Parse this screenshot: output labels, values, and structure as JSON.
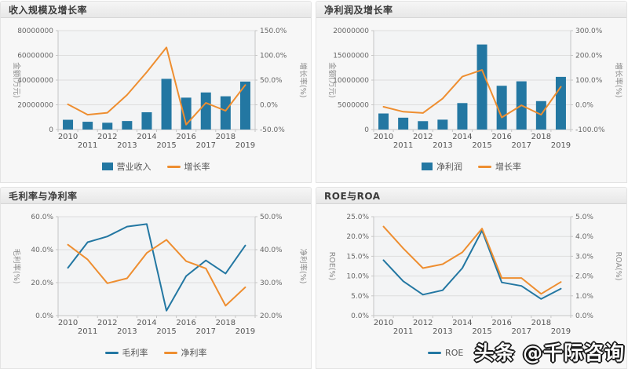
{
  "watermark": {
    "text": "头条 @千际咨询"
  },
  "colors": {
    "bar_blue": "#2377a2",
    "line_blue": "#2377a2",
    "line_orange": "#ee8e30",
    "grid": "#dddddd",
    "axis": "#c6c6c6",
    "plot_bg": "#f3f4f5"
  },
  "chart_data": [
    {
      "type": "bar",
      "title": "收入规模及增长率",
      "categories": [
        "2010",
        "2011",
        "2012",
        "2013",
        "2014",
        "2015",
        "2016",
        "2017",
        "2018",
        "2019"
      ],
      "left_axis": {
        "name": "金额(万元)",
        "min": 0,
        "max": 80000000,
        "tick_labels": [
          "80000000",
          "60000000",
          "40000000",
          "20000000",
          "0"
        ]
      },
      "right_axis": {
        "name": "增长率(%)",
        "min": -50,
        "max": 150,
        "tick_labels": [
          "150.0%",
          "100.0%",
          "50.0%",
          "0.0%",
          "-50.0%"
        ]
      },
      "series": [
        {
          "name": "营业收入",
          "type": "bar",
          "axis": "left",
          "color": "#2377a2",
          "values": [
            7900000,
            6300000,
            5500000,
            6900000,
            14000000,
            41000000,
            25800000,
            30000000,
            26900000,
            38800000
          ]
        },
        {
          "name": "增长率",
          "type": "line",
          "axis": "right",
          "color": "#ee8e30",
          "values": [
            1,
            -20,
            -16,
            20,
            66,
            116,
            -40,
            4,
            -12,
            40
          ]
        }
      ]
    },
    {
      "type": "bar",
      "title": "净利润及增长率",
      "categories": [
        "2010",
        "2011",
        "2012",
        "2013",
        "2014",
        "2015",
        "2016",
        "2017",
        "2018",
        "2019"
      ],
      "left_axis": {
        "name": "金额(万元)",
        "min": 0,
        "max": 20000000,
        "tick_labels": [
          "20000000",
          "15000000",
          "10000000",
          "5000000",
          "0"
        ]
      },
      "right_axis": {
        "name": "增长率(%)",
        "min": -100,
        "max": 300,
        "tick_labels": [
          "300.0%",
          "200.0%",
          "100.0%",
          "0.0%",
          "-100.0%"
        ]
      },
      "series": [
        {
          "name": "净利润",
          "type": "bar",
          "axis": "left",
          "color": "#2377a2",
          "values": [
            3250000,
            2400000,
            1700000,
            2000000,
            5350000,
            17200000,
            8850000,
            9750000,
            5750000,
            10650000
          ]
        },
        {
          "name": "增长率",
          "type": "line",
          "axis": "right",
          "color": "#ee8e30",
          "values": [
            -8,
            -28,
            -33,
            25,
            114,
            141,
            -51,
            -2,
            -40,
            73
          ]
        }
      ]
    },
    {
      "type": "line",
      "title": "毛利率与净利率",
      "categories": [
        "2010",
        "2011",
        "2012",
        "2013",
        "2014",
        "2015",
        "2016",
        "2017",
        "2018",
        "2019"
      ],
      "left_axis": {
        "name": "毛利率(%)",
        "min": 0,
        "max": 60,
        "tick_labels": [
          "60.0%",
          "40.0%",
          "20.0%",
          "0.0%"
        ]
      },
      "right_axis": {
        "name": "净利率(%)",
        "min": 20,
        "max": 50,
        "tick_labels": [
          "50.0%",
          "40.0%",
          "30.0%",
          "20.0%"
        ]
      },
      "series": [
        {
          "name": "毛利率",
          "type": "line",
          "axis": "left",
          "color": "#2377a2",
          "values": [
            29,
            44.5,
            48,
            54,
            55.5,
            3,
            24,
            33.5,
            25.5,
            42.5
          ]
        },
        {
          "name": "净利率",
          "type": "line",
          "axis": "right",
          "color": "#ee8e30",
          "values": [
            41.5,
            37,
            29.8,
            31.3,
            39,
            43,
            36.5,
            34.3,
            23,
            28.6
          ]
        }
      ]
    },
    {
      "type": "line",
      "title": "ROE与ROA",
      "categories": [
        "2010",
        "2011",
        "2012",
        "2013",
        "2014",
        "2015",
        "2016",
        "2017",
        "2018",
        "2019"
      ],
      "left_axis": {
        "name": "ROE(%)",
        "min": 0,
        "max": 25,
        "tick_labels": [
          "25.0%",
          "20.0%",
          "15.0%",
          "10.0%",
          "5.0%",
          "0.0%"
        ]
      },
      "right_axis": {
        "name": "ROA(%)",
        "min": 0,
        "max": 5,
        "tick_labels": [
          "5.0%",
          "4.0%",
          "3.0%",
          "2.0%",
          "1.0%",
          "0.0%"
        ]
      },
      "series": [
        {
          "name": "ROE",
          "type": "line",
          "axis": "left",
          "color": "#2377a2",
          "values": [
            14,
            8.7,
            5.3,
            6.4,
            12,
            21.5,
            8.4,
            7.5,
            4.2,
            6.8
          ]
        },
        {
          "name": "ROA",
          "type": "line",
          "axis": "right",
          "color": "#ee8e30",
          "values": [
            4.5,
            3.4,
            2.4,
            2.6,
            3.2,
            4.4,
            1.9,
            1.9,
            1.1,
            1.7
          ]
        }
      ]
    }
  ]
}
